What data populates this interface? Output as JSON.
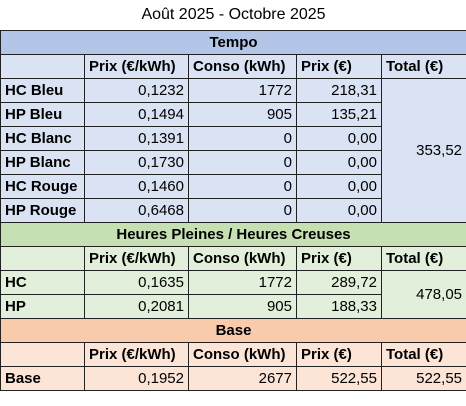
{
  "title": "Août 2025 - Octobre 2025",
  "sections": [
    {
      "title": "Tempo",
      "columns": [
        "Prix (€/kWh)",
        "Conso (kWh)",
        "Prix (€)",
        "Total (€)"
      ],
      "rows": [
        [
          "HC Bleu",
          "0,1232",
          "1772",
          "218,31"
        ],
        [
          "HP Bleu",
          "0,1494",
          "905",
          "135,21"
        ],
        [
          "HC Blanc",
          "0,1391",
          "0",
          "0,00"
        ],
        [
          "HP Blanc",
          "0,1730",
          "0",
          "0,00"
        ],
        [
          "HC Rouge",
          "0,1460",
          "0",
          "0,00"
        ],
        [
          "HP Rouge",
          "0,6468",
          "0",
          "0,00"
        ]
      ],
      "total": "353,52"
    },
    {
      "title": "Heures Pleines / Heures Creuses",
      "columns": [
        "Prix (€/kWh)",
        "Conso (kWh)",
        "Prix (€)",
        "Total (€)"
      ],
      "rows": [
        [
          "HC",
          "0,1635",
          "1772",
          "289,72"
        ],
        [
          "HP",
          "0,2081",
          "905",
          "188,33"
        ]
      ],
      "total": "478,05"
    },
    {
      "title": "Base",
      "columns": [
        "Prix (€/kWh)",
        "Conso (kWh)",
        "Prix (€)",
        "Total (€)"
      ],
      "rows": [
        [
          "Base",
          "0,1952",
          "2677",
          "522,55"
        ]
      ],
      "total": "522,55"
    }
  ]
}
